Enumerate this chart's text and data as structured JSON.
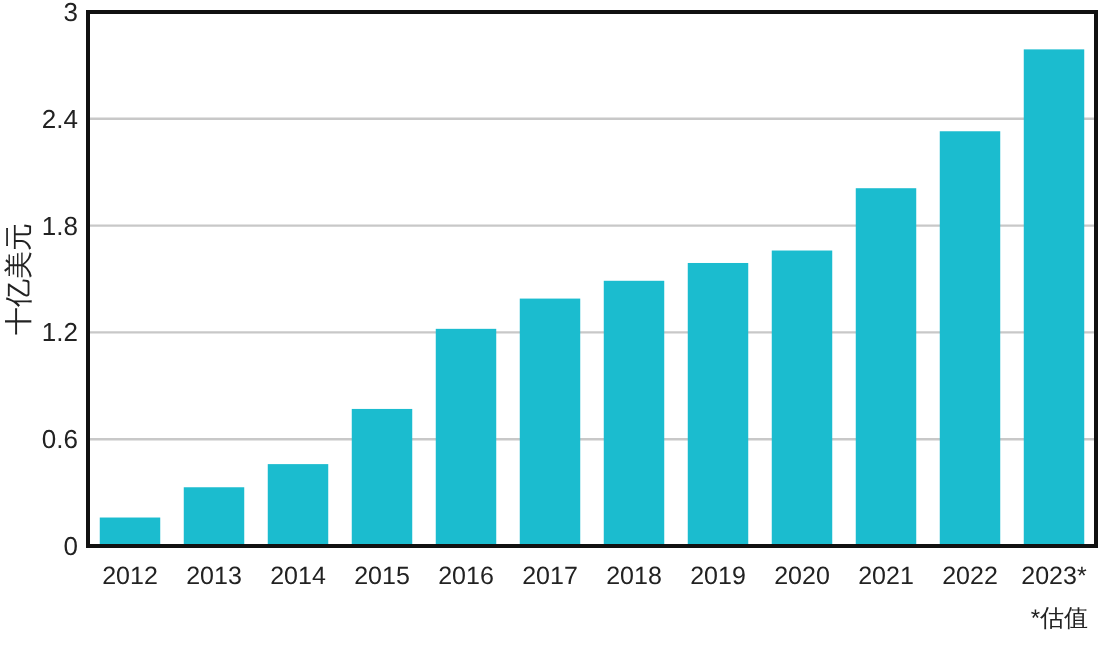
{
  "chart_data": {
    "type": "bar",
    "ylabel": "十亿美元",
    "categories": [
      "2012",
      "2013",
      "2014",
      "2015",
      "2016",
      "2017",
      "2018",
      "2019",
      "2020",
      "2021",
      "2022",
      "2023*"
    ],
    "values": [
      0.16,
      0.33,
      0.46,
      0.77,
      1.22,
      1.39,
      1.49,
      1.59,
      1.66,
      2.01,
      2.33,
      2.79
    ],
    "color": "#1bbccf",
    "ylim": [
      0,
      3
    ],
    "yticks": [
      0,
      0.6,
      1.2,
      1.8,
      2.4,
      3
    ],
    "grid": "y",
    "annotations": [
      "*估值"
    ]
  }
}
